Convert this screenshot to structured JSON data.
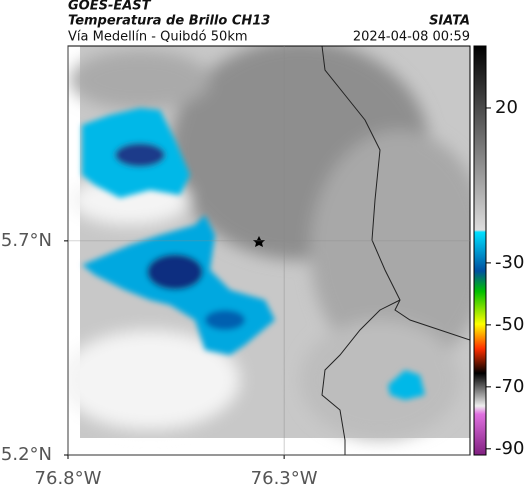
{
  "header": {
    "title": "GOES-EAST",
    "subtitle": "Temperatura de Brillo CH13",
    "route": "Vía Medellín - Quibdó 50km",
    "source": "SIATA",
    "datetime": "2024-04-08 00:59"
  },
  "map": {
    "xlim": [
      -76.8,
      -75.87
    ],
    "ylim": [
      5.2,
      6.155
    ],
    "xticks": [
      {
        "value": -76.8,
        "label": "76.8°W"
      },
      {
        "value": -76.3,
        "label": "76.3°W"
      }
    ],
    "yticks": [
      {
        "value": 5.2,
        "label": "5.2°N"
      },
      {
        "value": 5.7,
        "label": "5.7°N"
      }
    ]
  },
  "colorbar": {
    "clim": [
      -92,
      40
    ],
    "ticks": [
      20,
      -30,
      -50,
      -70,
      -90
    ]
  }
}
